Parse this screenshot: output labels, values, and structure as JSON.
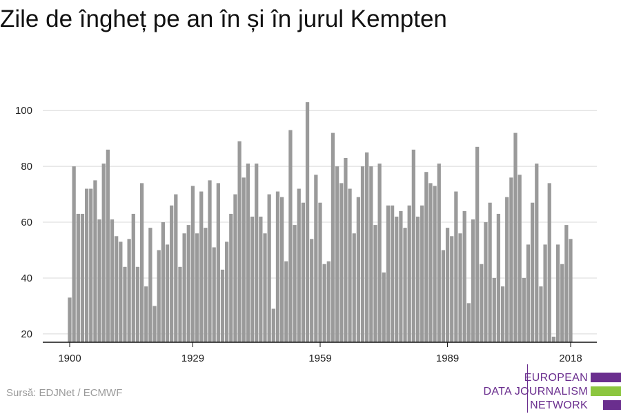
{
  "title": "Zile de îngheț pe an în și în jurul Kempten",
  "source": "Sursă: EDJNet / ECMWF",
  "logo": {
    "lines": [
      "EUROPEAN",
      "DATA JOURNALISM",
      "NETWORK"
    ],
    "colors": {
      "purple": "#6a2e8e",
      "green": "#8cc63f"
    }
  },
  "chart_data": {
    "type": "bar",
    "title": "Zile de îngheț pe an în și în jurul Kempten",
    "xlabel": "",
    "ylabel": "",
    "x_range": [
      1900,
      2018
    ],
    "x_ticks": [
      1900,
      1929,
      1959,
      1989,
      2018
    ],
    "y_ticks": [
      20,
      40,
      60,
      80,
      100
    ],
    "ylim": [
      17,
      105
    ],
    "grid": true,
    "bar_color": "#9a9a9a",
    "values": [
      33,
      80,
      63,
      63,
      72,
      72,
      75,
      61,
      81,
      86,
      61,
      55,
      53,
      44,
      54,
      63,
      44,
      74,
      37,
      58,
      30,
      50,
      60,
      52,
      66,
      70,
      44,
      56,
      59,
      73,
      56,
      71,
      58,
      75,
      51,
      74,
      43,
      53,
      63,
      70,
      89,
      76,
      81,
      62,
      81,
      62,
      56,
      70,
      29,
      71,
      69,
      46,
      93,
      59,
      72,
      67,
      103,
      54,
      77,
      67,
      45,
      46,
      92,
      80,
      74,
      83,
      72,
      56,
      69,
      80,
      85,
      80,
      59,
      81,
      42,
      66,
      66,
      62,
      64,
      58,
      66,
      86,
      62,
      66,
      78,
      74,
      73,
      81,
      50,
      58,
      55,
      71,
      56,
      64,
      31,
      61,
      87,
      45,
      60,
      67,
      40,
      63,
      37,
      69,
      76,
      92,
      77,
      40,
      52,
      67,
      81,
      37,
      52,
      74,
      19,
      52,
      45,
      59,
      54
    ]
  }
}
